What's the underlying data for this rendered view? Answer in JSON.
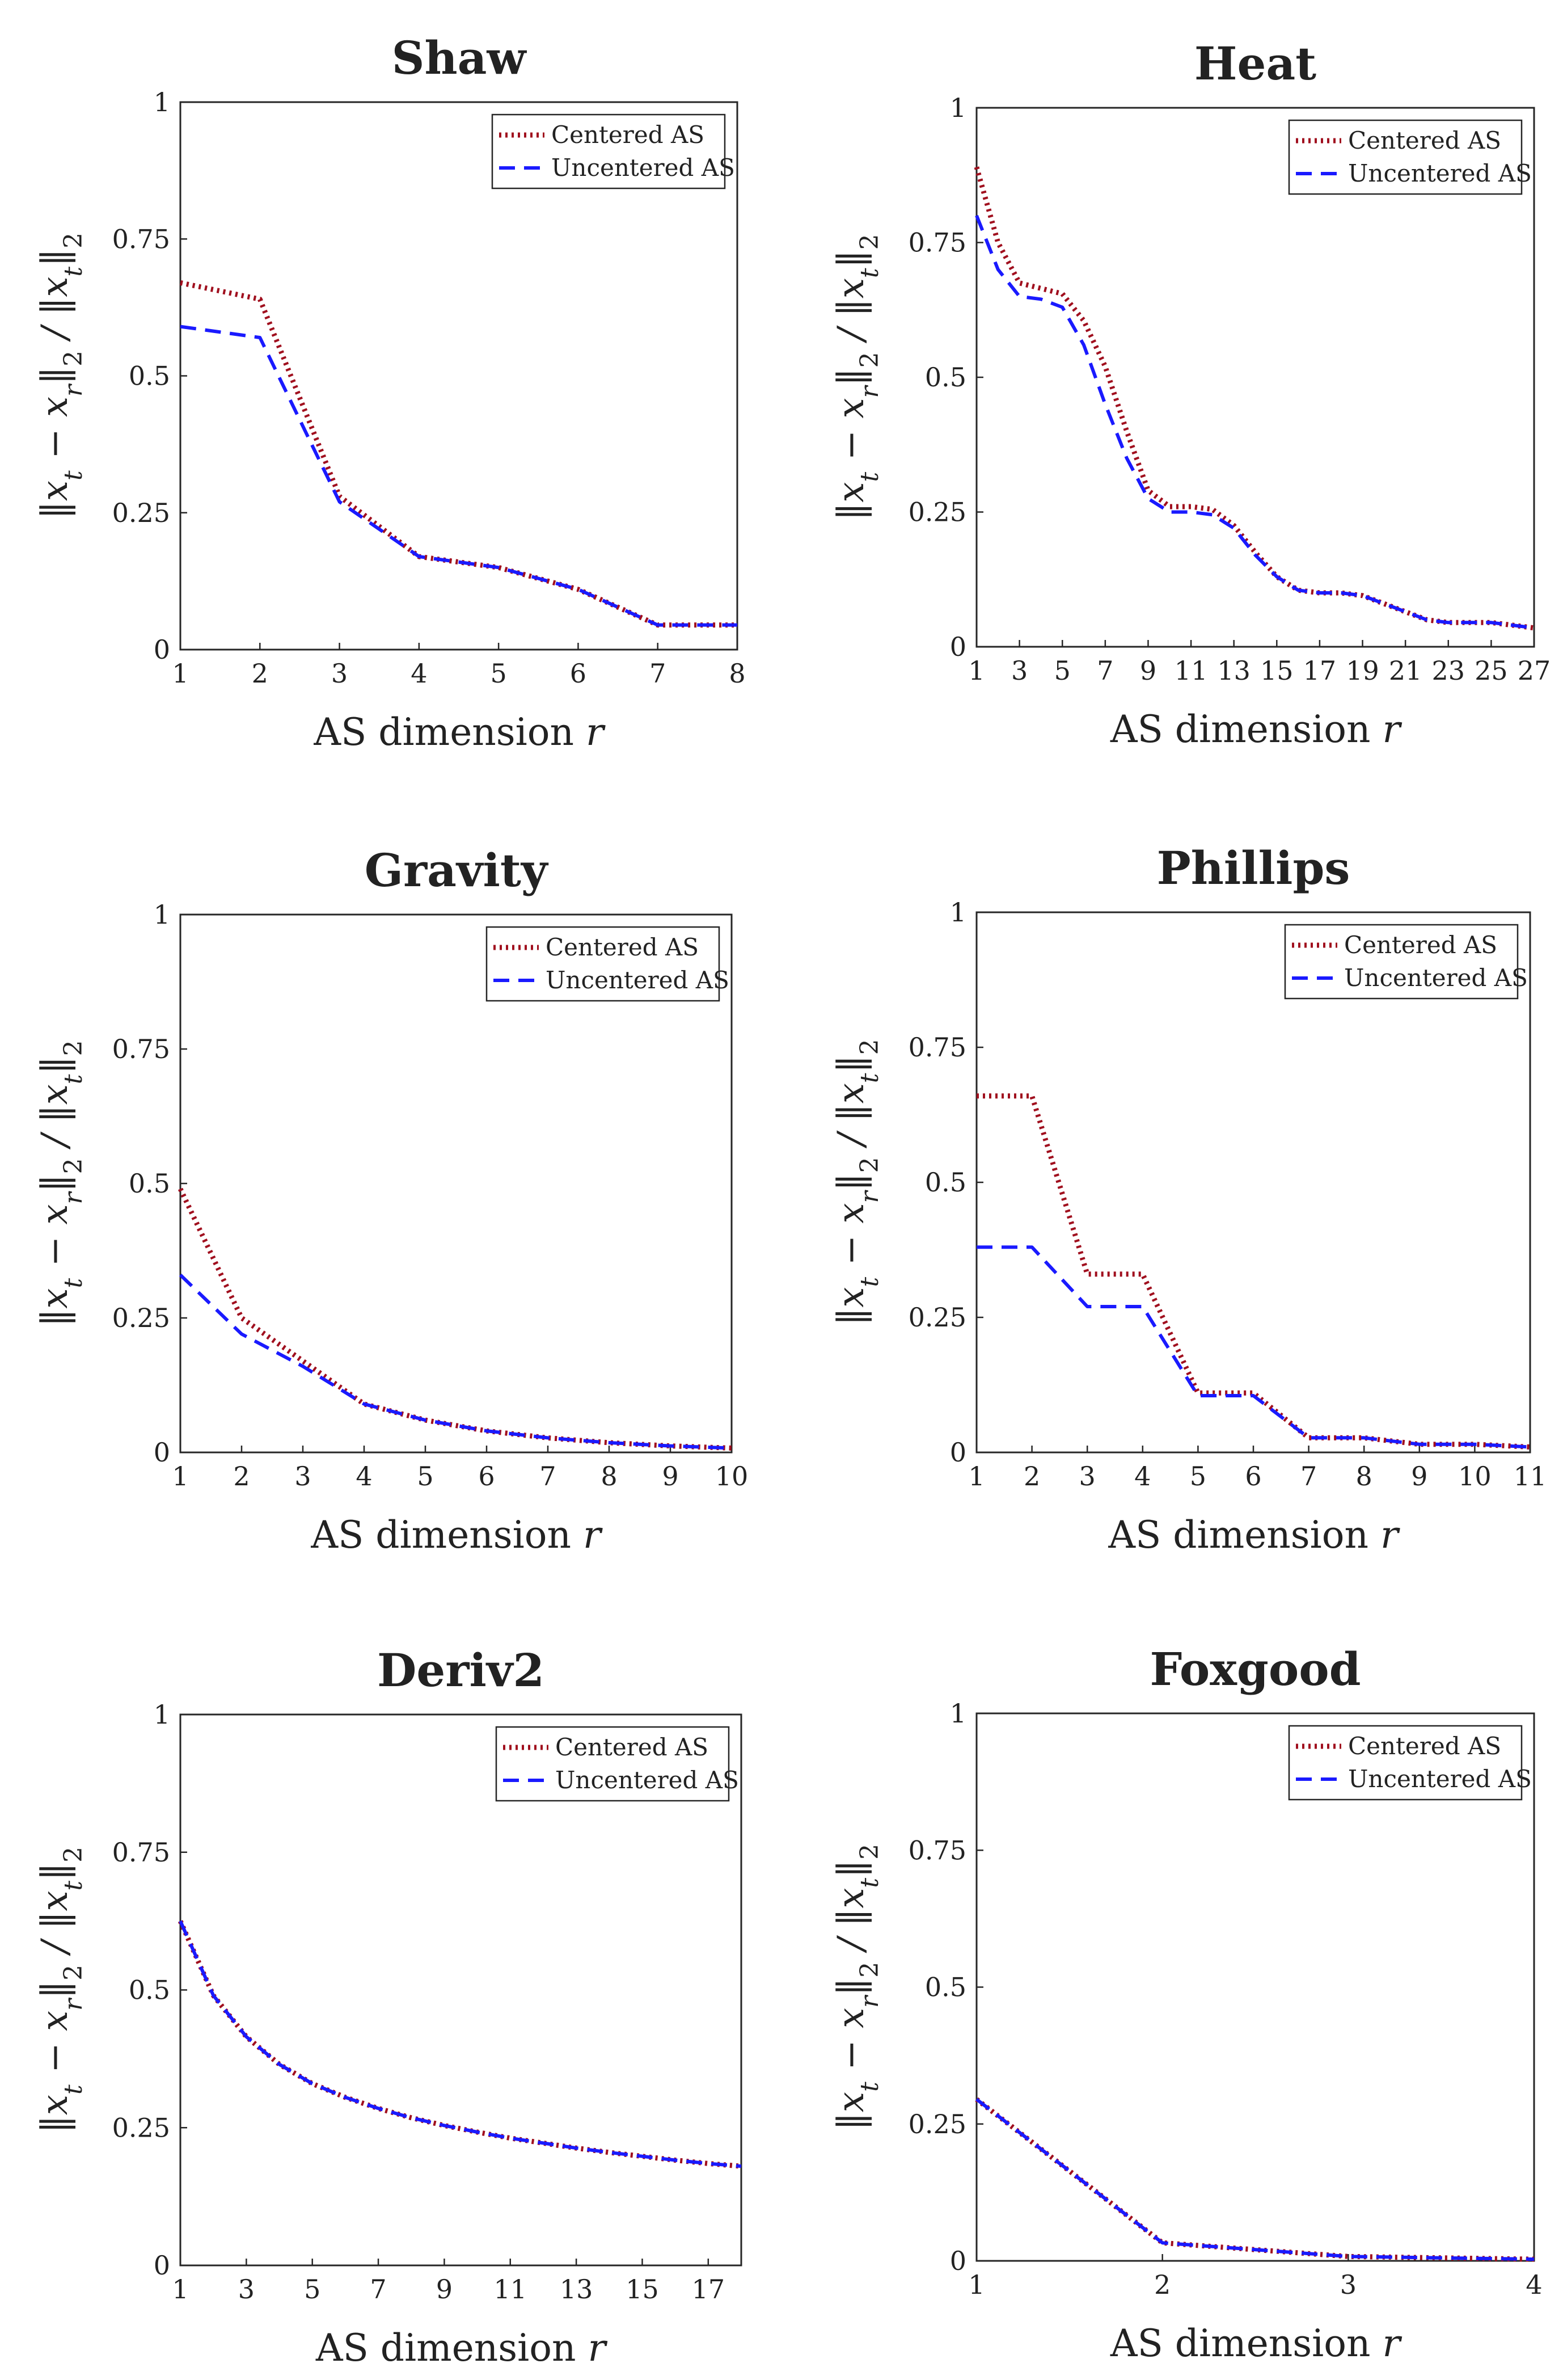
{
  "colors": {
    "centered": "#a00f1e",
    "uncentered": "#1a1aff",
    "axis": "#262626",
    "grid": "#dedede"
  },
  "chart_data": [
    {
      "type": "line",
      "title": "Shaw",
      "xlabel": "AS dimension r",
      "ylabel": "||x_t − x_r||_2 / ||x_t||_2",
      "xlim": [
        1,
        8
      ],
      "ylim": [
        0,
        1
      ],
      "xticks": [
        1,
        2,
        3,
        4,
        5,
        6,
        7,
        8
      ],
      "yticks": [
        0,
        0.25,
        0.5,
        0.75,
        1
      ],
      "ytick_labels": [
        "0",
        "0.25",
        "0.5",
        "0.75",
        "1"
      ],
      "grid": true,
      "legend_position": "top-right",
      "x": [
        1,
        2,
        3,
        4,
        5,
        6,
        7,
        8
      ],
      "series": [
        {
          "name": "Centered AS",
          "style": "dotted",
          "values": [
            0.67,
            0.64,
            0.28,
            0.17,
            0.15,
            0.11,
            0.045,
            0.045
          ]
        },
        {
          "name": "Uncentered AS",
          "style": "dashed",
          "values": [
            0.59,
            0.57,
            0.27,
            0.17,
            0.15,
            0.11,
            0.045,
            0.045
          ]
        }
      ]
    },
    {
      "type": "line",
      "title": "Heat",
      "xlabel": "AS dimension r",
      "ylabel": "||x_t − x_r||_2 / ||x_t||_2",
      "xlim": [
        1,
        27
      ],
      "ylim": [
        0,
        1
      ],
      "xticks": [
        1,
        3,
        5,
        7,
        9,
        11,
        13,
        15,
        17,
        19,
        21,
        23,
        25,
        27
      ],
      "yticks": [
        0,
        0.25,
        0.5,
        0.75,
        1
      ],
      "ytick_labels": [
        "0",
        "0.25",
        "0.5",
        "0.75",
        "1"
      ],
      "grid": true,
      "legend_position": "top-right",
      "x": [
        1,
        2,
        3,
        4,
        5,
        6,
        7,
        8,
        9,
        10,
        11,
        12,
        13,
        14,
        15,
        16,
        17,
        18,
        19,
        20,
        21,
        22,
        23,
        24,
        25,
        26,
        27
      ],
      "series": [
        {
          "name": "Centered AS",
          "style": "dotted",
          "values": [
            0.89,
            0.75,
            0.675,
            0.665,
            0.655,
            0.605,
            0.52,
            0.4,
            0.29,
            0.26,
            0.26,
            0.255,
            0.225,
            0.175,
            0.13,
            0.105,
            0.1,
            0.1,
            0.095,
            0.08,
            0.065,
            0.05,
            0.045,
            0.045,
            0.045,
            0.04,
            0.035
          ]
        },
        {
          "name": "Uncentered AS",
          "style": "dashed",
          "values": [
            0.8,
            0.7,
            0.65,
            0.645,
            0.63,
            0.56,
            0.45,
            0.35,
            0.275,
            0.25,
            0.25,
            0.245,
            0.22,
            0.17,
            0.13,
            0.105,
            0.1,
            0.1,
            0.095,
            0.08,
            0.065,
            0.05,
            0.045,
            0.045,
            0.045,
            0.04,
            0.035
          ]
        }
      ]
    },
    {
      "type": "line",
      "title": "Gravity",
      "xlabel": "AS dimension r",
      "ylabel": "||x_t − x_r||_2 / ||x_t||_2",
      "xlim": [
        1,
        10
      ],
      "ylim": [
        0,
        1
      ],
      "xticks": [
        1,
        2,
        3,
        4,
        5,
        6,
        7,
        8,
        9,
        10
      ],
      "yticks": [
        0,
        0.25,
        0.5,
        0.75,
        1
      ],
      "ytick_labels": [
        "0",
        "0.25",
        "0.5",
        "0.75",
        "1"
      ],
      "grid": true,
      "legend_position": "top-right",
      "x": [
        1,
        2,
        3,
        4,
        5,
        6,
        7,
        8,
        9,
        10
      ],
      "series": [
        {
          "name": "Centered AS",
          "style": "dotted",
          "values": [
            0.49,
            0.25,
            0.17,
            0.09,
            0.06,
            0.04,
            0.027,
            0.018,
            0.012,
            0.008
          ]
        },
        {
          "name": "Uncentered AS",
          "style": "dashed",
          "values": [
            0.33,
            0.22,
            0.16,
            0.09,
            0.06,
            0.04,
            0.027,
            0.018,
            0.012,
            0.008
          ]
        }
      ]
    },
    {
      "type": "line",
      "title": "Phillips",
      "xlabel": "AS dimension r",
      "ylabel": "||x_t − x_r||_2 / ||x_t||_2",
      "xlim": [
        1,
        11
      ],
      "ylim": [
        0,
        1
      ],
      "xticks": [
        1,
        2,
        3,
        4,
        5,
        6,
        7,
        8,
        9,
        10,
        11
      ],
      "yticks": [
        0,
        0.25,
        0.5,
        0.75,
        1
      ],
      "ytick_labels": [
        "0",
        "0.25",
        "0.5",
        "0.75",
        "1"
      ],
      "grid": true,
      "legend_position": "top-right",
      "x": [
        1,
        2,
        3,
        4,
        5,
        6,
        7,
        8,
        9,
        10,
        11
      ],
      "series": [
        {
          "name": "Centered AS",
          "style": "dotted",
          "values": [
            0.66,
            0.66,
            0.33,
            0.33,
            0.11,
            0.11,
            0.027,
            0.027,
            0.015,
            0.015,
            0.01
          ]
        },
        {
          "name": "Uncentered AS",
          "style": "dashed",
          "values": [
            0.38,
            0.38,
            0.27,
            0.27,
            0.105,
            0.105,
            0.027,
            0.027,
            0.015,
            0.015,
            0.01
          ]
        }
      ]
    },
    {
      "type": "line",
      "title": "Deriv2",
      "xlabel": "AS dimension r",
      "ylabel": "||x_t − x_r||_2 / ||x_t||_2",
      "xlim": [
        1,
        18
      ],
      "ylim": [
        0,
        1
      ],
      "xticks": [
        1,
        3,
        5,
        7,
        9,
        11,
        13,
        15,
        17
      ],
      "yticks": [
        0,
        0.25,
        0.5,
        0.75,
        1
      ],
      "ytick_labels": [
        "0",
        "0.25",
        "0.5",
        "0.75",
        "1"
      ],
      "grid": true,
      "legend_position": "top-right",
      "x": [
        1,
        2,
        3,
        4,
        5,
        6,
        7,
        8,
        9,
        10,
        11,
        12,
        13,
        14,
        15,
        16,
        17,
        18
      ],
      "series": [
        {
          "name": "Centered AS",
          "style": "dotted",
          "values": [
            0.625,
            0.49,
            0.415,
            0.365,
            0.33,
            0.305,
            0.285,
            0.268,
            0.254,
            0.242,
            0.231,
            0.222,
            0.213,
            0.205,
            0.198,
            0.191,
            0.185,
            0.18
          ]
        },
        {
          "name": "Uncentered AS",
          "style": "dashed",
          "values": [
            0.625,
            0.49,
            0.415,
            0.365,
            0.33,
            0.305,
            0.285,
            0.268,
            0.254,
            0.242,
            0.231,
            0.222,
            0.213,
            0.205,
            0.198,
            0.191,
            0.185,
            0.18
          ]
        }
      ]
    },
    {
      "type": "line",
      "title": "Foxgood",
      "xlabel": "AS dimension r",
      "ylabel": "||x_t − x_r||_2 / ||x_t||_2",
      "xlim": [
        1,
        4
      ],
      "ylim": [
        0,
        1
      ],
      "xticks": [
        1,
        2,
        3,
        4
      ],
      "yticks": [
        0,
        0.25,
        0.5,
        0.75,
        1
      ],
      "ytick_labels": [
        "0",
        "0.25",
        "0.5",
        "0.75",
        "1"
      ],
      "grid": true,
      "legend_position": "top-right",
      "x": [
        1,
        2,
        3,
        4
      ],
      "series": [
        {
          "name": "Centered AS",
          "style": "dotted",
          "values": [
            0.295,
            0.033,
            0.008,
            0.003
          ]
        },
        {
          "name": "Uncentered AS",
          "style": "dashed",
          "values": [
            0.295,
            0.033,
            0.008,
            0.003
          ]
        }
      ]
    }
  ]
}
